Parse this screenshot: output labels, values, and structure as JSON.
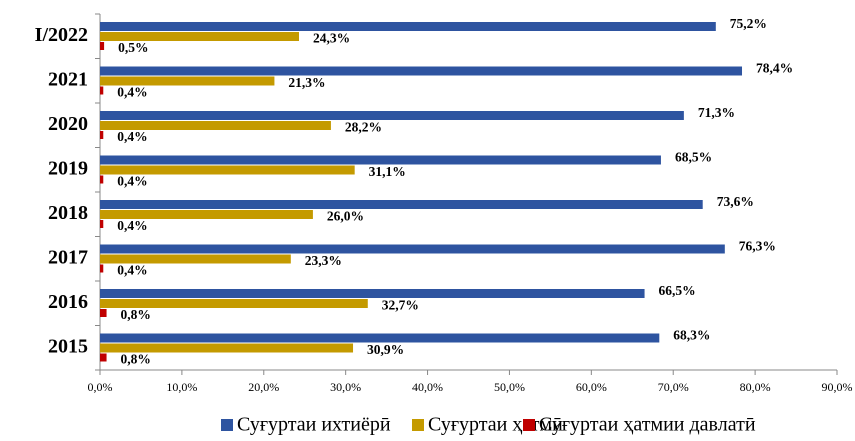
{
  "chart_data": {
    "type": "hbar",
    "categories": [
      "I/2022",
      "2021",
      "2020",
      "2019",
      "2018",
      "2017",
      "2016",
      "2015"
    ],
    "series": [
      {
        "name": "Суғуртаи ихтиёрӣ",
        "color": "#2e54a0",
        "values": [
          75.2,
          78.4,
          71.3,
          68.5,
          73.6,
          76.3,
          66.5,
          68.3
        ],
        "value_labels": [
          "75,2%",
          "78,4%",
          "71,3%",
          "68,5%",
          "73,6%",
          "76,3%",
          "66,5%",
          "68,3%"
        ]
      },
      {
        "name": "Суғуртаи ҳатмӣ",
        "color": "#c49a00",
        "values": [
          24.3,
          21.3,
          28.2,
          31.1,
          26.0,
          23.3,
          32.7,
          30.9
        ],
        "value_labels": [
          "24,3%",
          "21,3%",
          "28,2%",
          "31,1%",
          "26,0%",
          "23,3%",
          "32,7%",
          "30,9%"
        ]
      },
      {
        "name": "Суғуртаи ҳатмии давлатӣ",
        "color": "#c00000",
        "values": [
          0.5,
          0.4,
          0.4,
          0.4,
          0.4,
          0.4,
          0.8,
          0.8
        ],
        "value_labels": [
          "0,5%",
          "0,4%",
          "0,4%",
          "0,4%",
          "0,4%",
          "0,4%",
          "0,8%",
          "0,8%"
        ]
      }
    ],
    "xlim": [
      0,
      90
    ],
    "xticks": [
      {
        "value": 0,
        "label": "0,0%"
      },
      {
        "value": 10,
        "label": "10,0%"
      },
      {
        "value": 20,
        "label": "20,0%"
      },
      {
        "value": 30,
        "label": "30,0%"
      },
      {
        "value": 40,
        "label": "40,0%"
      },
      {
        "value": 50,
        "label": "50,0%"
      },
      {
        "value": 60,
        "label": "60,0%"
      },
      {
        "value": 70,
        "label": "70,0%"
      },
      {
        "value": 80,
        "label": "80,0%"
      },
      {
        "value": 90,
        "label": "90,0%"
      }
    ],
    "grid": false,
    "legend": "bottom"
  }
}
